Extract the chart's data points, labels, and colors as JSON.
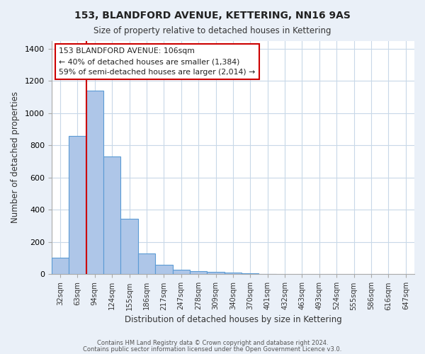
{
  "title": "153, BLANDFORD AVENUE, KETTERING, NN16 9AS",
  "subtitle": "Size of property relative to detached houses in Kettering",
  "xlabel": "Distribution of detached houses by size in Kettering",
  "ylabel": "Number of detached properties",
  "bar_values": [
    105,
    860,
    1140,
    730,
    345,
    130,
    60,
    30,
    20,
    15,
    10,
    5,
    3
  ],
  "all_labels": [
    "32sqm",
    "63sqm",
    "94sqm",
    "124sqm",
    "155sqm",
    "186sqm",
    "217sqm",
    "247sqm",
    "278sqm",
    "309sqm",
    "340sqm",
    "370sqm",
    "401sqm",
    "432sqm",
    "463sqm",
    "493sqm",
    "524sqm",
    "555sqm",
    "586sqm",
    "616sqm",
    "647sqm"
  ],
  "bar_color": "#aec6e8",
  "bar_edge_color": "#5b9bd5",
  "annotation_title": "153 BLANDFORD AVENUE: 106sqm",
  "annotation_line1": "← 40% of detached houses are smaller (1,384)",
  "annotation_line2": "59% of semi-detached houses are larger (2,014) →",
  "annotation_box_color": "#ffffff",
  "annotation_box_edge": "#cc0000",
  "red_line_color": "#cc0000",
  "red_line_x": 1.5,
  "ylim": [
    0,
    1450
  ],
  "yticks": [
    0,
    200,
    400,
    600,
    800,
    1000,
    1200,
    1400
  ],
  "grid_color": "#c8d8e8",
  "bg_color": "#eaf0f8",
  "plot_bg": "#ffffff",
  "footer1": "Contains HM Land Registry data © Crown copyright and database right 2024.",
  "footer2": "Contains public sector information licensed under the Open Government Licence v3.0."
}
